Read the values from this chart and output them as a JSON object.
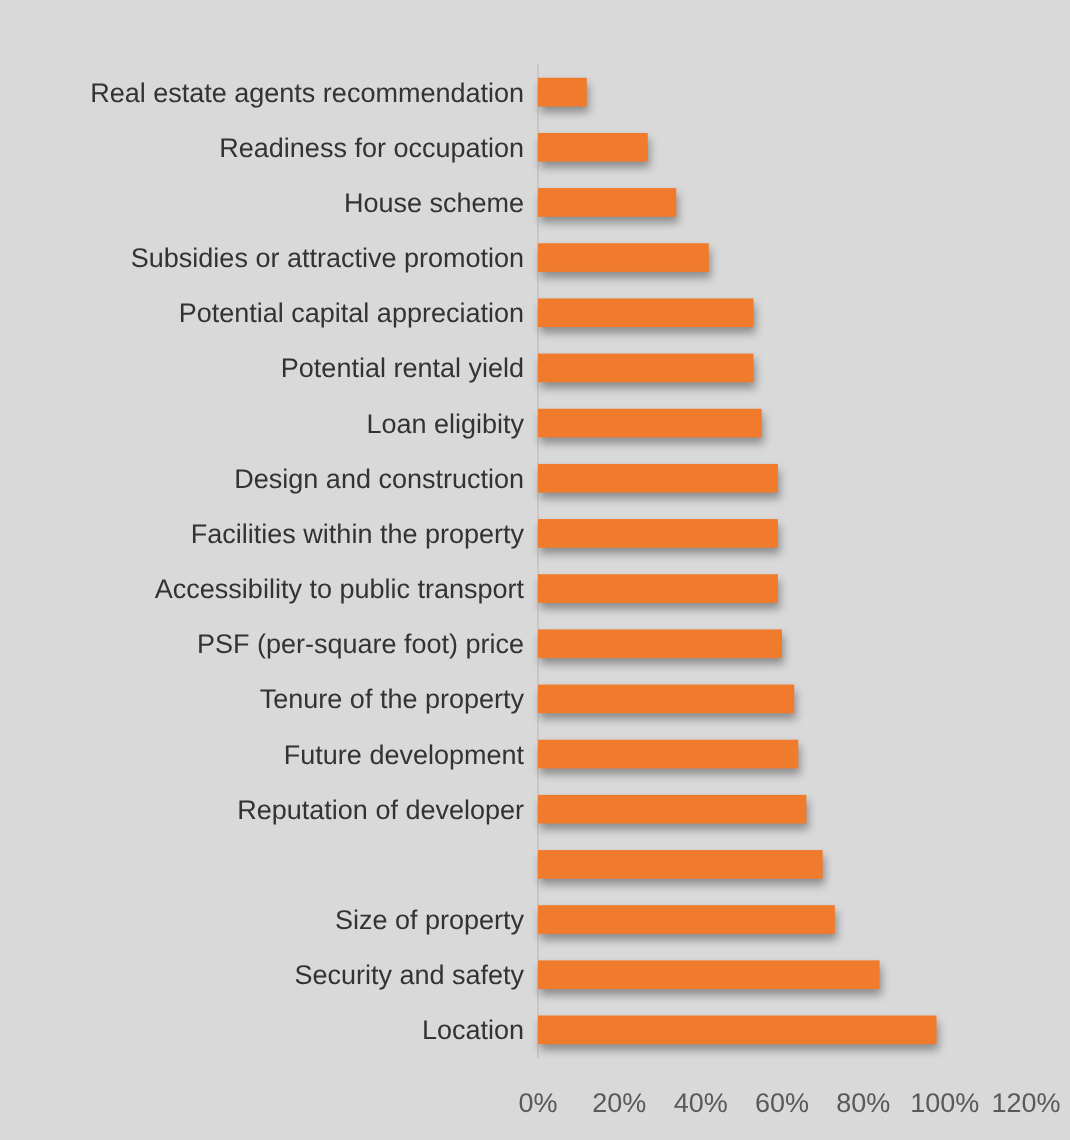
{
  "chart_data": {
    "type": "bar",
    "orientation": "horizontal",
    "categories": [
      "Real estate agents recommendation",
      "Readiness for occupation",
      "House scheme",
      "Subsidies or attractive promotion",
      "Potential capital appreciation",
      "Potential rental yield",
      "Loan eligibity",
      "Design and construction",
      "Facilities within the property",
      "Accessibility  to public transport",
      "PSF (per-square foot) price",
      "Tenure of the property",
      "Future development",
      "Reputation of developer",
      null,
      "Size of property",
      "Security and safety",
      "Location"
    ],
    "values": [
      12,
      27,
      34,
      42,
      53,
      53,
      55,
      59,
      59,
      59,
      60,
      63,
      64,
      66,
      70,
      73,
      84,
      98
    ],
    "color": "#f07b2c",
    "xlim": [
      0,
      120
    ],
    "xticks": [
      {
        "value": 0,
        "label": "0%"
      },
      {
        "value": 20,
        "label": "20%"
      },
      {
        "value": 40,
        "label": "40%"
      },
      {
        "value": 60,
        "label": "60%"
      },
      {
        "value": 80,
        "label": "80%"
      },
      {
        "value": 100,
        "label": "100%"
      },
      {
        "value": 120,
        "label": "120%"
      }
    ],
    "grid": false
  }
}
